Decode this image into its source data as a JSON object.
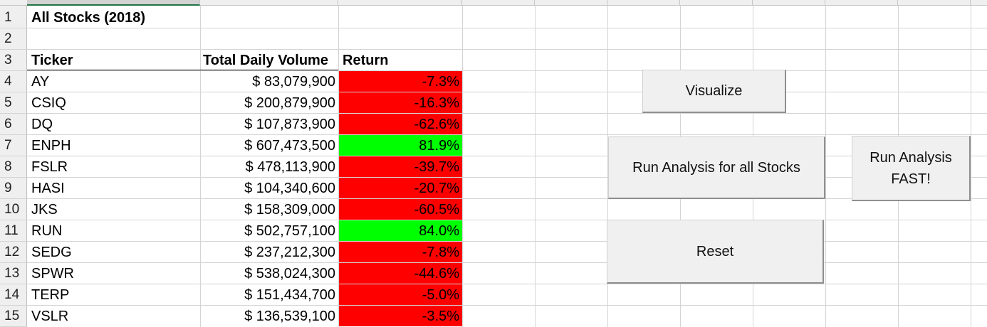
{
  "title": "All Stocks (2018)",
  "headers": {
    "ticker": "Ticker",
    "volume": "Total Daily Volume",
    "return": "Return"
  },
  "row_numbers": [
    "1",
    "2",
    "3",
    "4",
    "5",
    "6",
    "7",
    "8",
    "9",
    "10",
    "11",
    "12",
    "13",
    "14",
    "15"
  ],
  "rows": [
    {
      "ticker": "AY",
      "volume": "$ 83,079,900",
      "return": "-7.3%",
      "positive": false
    },
    {
      "ticker": "CSIQ",
      "volume": "$ 200,879,900",
      "return": "-16.3%",
      "positive": false
    },
    {
      "ticker": "DQ",
      "volume": "$ 107,873,900",
      "return": "-62.6%",
      "positive": false
    },
    {
      "ticker": "ENPH",
      "volume": "$ 607,473,500",
      "return": "81.9%",
      "positive": true
    },
    {
      "ticker": "FSLR",
      "volume": "$ 478,113,900",
      "return": "-39.7%",
      "positive": false
    },
    {
      "ticker": "HASI",
      "volume": "$ 104,340,600",
      "return": "-20.7%",
      "positive": false
    },
    {
      "ticker": "JKS",
      "volume": "$ 158,309,000",
      "return": "-60.5%",
      "positive": false
    },
    {
      "ticker": "RUN",
      "volume": "$ 502,757,100",
      "return": "84.0%",
      "positive": true
    },
    {
      "ticker": "SEDG",
      "volume": "$ 237,212,300",
      "return": "-7.8%",
      "positive": false
    },
    {
      "ticker": "SPWR",
      "volume": "$ 538,024,300",
      "return": "-44.6%",
      "positive": false
    },
    {
      "ticker": "TERP",
      "volume": "$ 151,434,700",
      "return": "-5.0%",
      "positive": false
    },
    {
      "ticker": "VSLR",
      "volume": "$ 136,539,100",
      "return": "-3.5%",
      "positive": false
    }
  ],
  "buttons": {
    "visualize": "Visualize",
    "run_all": "Run Analysis for all Stocks",
    "run_fast": "Run Analysis FAST!",
    "reset": "Reset"
  },
  "colors": {
    "negative": "#ff0000",
    "positive": "#00ff00",
    "button_face": "#f0f0f0"
  }
}
